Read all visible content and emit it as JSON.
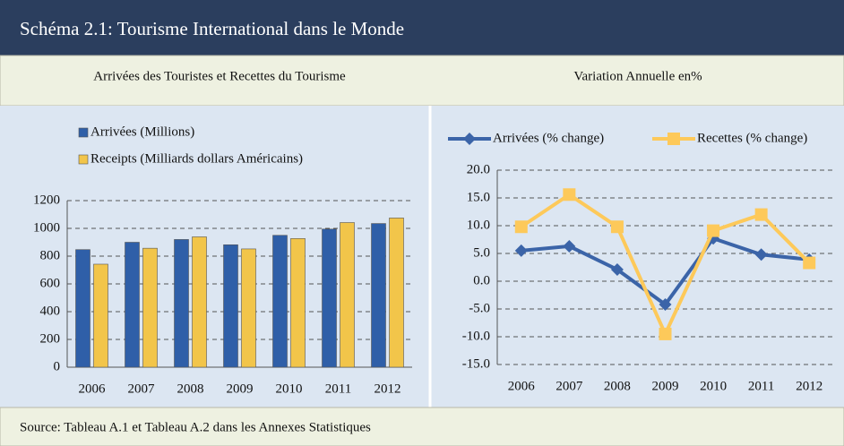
{
  "header": {
    "title": "Schéma 2.1: Tourisme International dans le Monde"
  },
  "footer": {
    "source": "Source: Tableau A.1  et Tableau A.2 dans les Annexes Statistiques"
  },
  "chart_data": [
    {
      "type": "bar",
      "title": "Arrivées des Touristes et Recettes du Tourisme",
      "legend": "top-left",
      "grid": true,
      "categories": [
        "2006",
        "2007",
        "2008",
        "2009",
        "2010",
        "2011",
        "2012"
      ],
      "series": [
        {
          "name": "Arrivées (Millions)",
          "color": "#2f5fa8",
          "values": [
            847,
            900,
            920,
            882,
            950,
            995,
            1035
          ]
        },
        {
          "name": "Receipts (Milliards dollars Américains)",
          "color": "#f2c54a",
          "values": [
            742,
            857,
            939,
            852,
            927,
            1042,
            1075
          ]
        }
      ],
      "ylim": [
        0,
        1200
      ],
      "yticks": [
        0,
        200,
        400,
        600,
        800,
        1000,
        1200
      ]
    },
    {
      "type": "line",
      "title": "Variation Annuelle en%",
      "legend": "top",
      "grid": true,
      "categories": [
        "2006",
        "2007",
        "2008",
        "2009",
        "2010",
        "2011",
        "2012"
      ],
      "series": [
        {
          "name": "Arrivées (% change)",
          "color": "#3b64a8",
          "marker": "diamond",
          "values": [
            5.5,
            6.3,
            2.1,
            -4.2,
            7.7,
            4.8,
            3.9
          ]
        },
        {
          "name": "Recettes (% change)",
          "color": "#fdc95a",
          "marker": "square",
          "values": [
            9.8,
            15.6,
            9.8,
            -9.5,
            9.1,
            12.0,
            3.3
          ]
        }
      ],
      "ylim": [
        -15,
        20
      ],
      "yticks": [
        {
          "value": -15,
          "label": "-15.0"
        },
        {
          "value": -10,
          "label": "-10.0"
        },
        {
          "value": -5,
          "label": "-5.0"
        },
        {
          "value": 0,
          "label": "0.0"
        },
        {
          "value": 5,
          "label": "5.0"
        },
        {
          "value": 10,
          "label": "10.0"
        },
        {
          "value": 15,
          "label": "15.0"
        },
        {
          "value": 20,
          "label": "20.0"
        }
      ]
    }
  ]
}
